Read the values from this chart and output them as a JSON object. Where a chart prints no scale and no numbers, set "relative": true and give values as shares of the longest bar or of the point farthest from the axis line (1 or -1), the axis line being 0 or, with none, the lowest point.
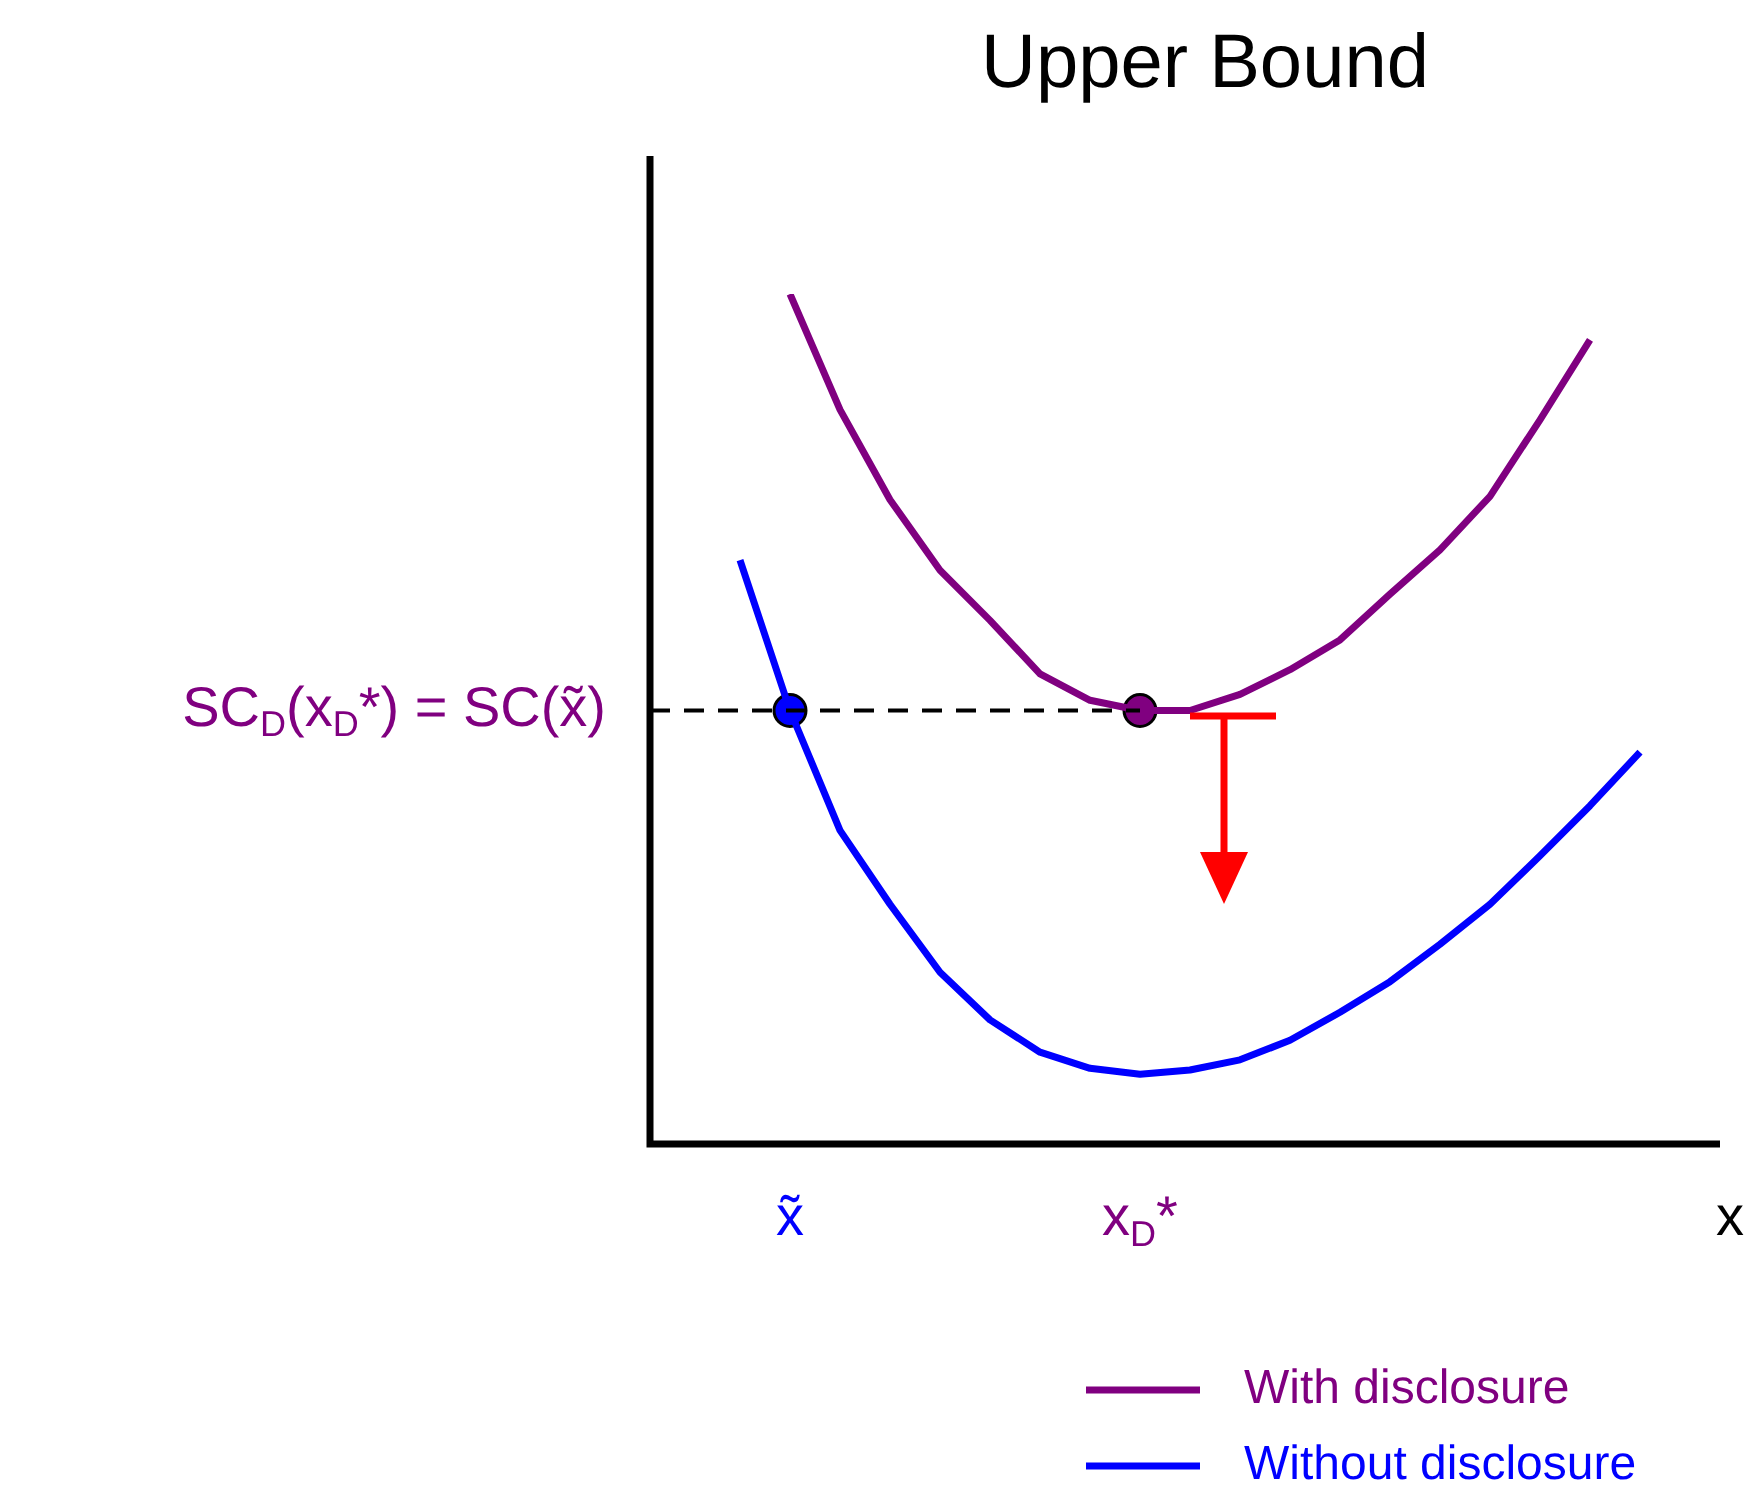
{
  "chart_data": {
    "type": "line",
    "title": "Upper Bound",
    "xlabel": "x",
    "relative": true,
    "tick_labels": "x",
    "legend": "bottom right",
    "categories": [
      null,
      null,
      null,
      "x̃",
      null,
      null,
      null,
      null,
      null,
      null,
      "x$_{D}$*",
      null,
      null,
      null,
      null,
      null,
      null,
      null,
      null,
      null,
      null,
      null
    ],
    "series": [
      {
        "name": "With disclosure",
        "color": "#800080",
        "values": [
          null,
          null,
          null,
          1.0,
          0.864,
          0.758,
          0.675,
          0.616,
          0.553,
          0.522,
          0.51,
          0.51,
          0.529,
          0.558,
          0.593,
          0.647,
          0.699,
          0.762,
          0.852,
          0.946,
          null,
          null
        ]
      },
      {
        "name": "Without disclosure",
        "color": "#0000ff",
        "values": [
          null,
          null,
          0.687,
          0.51,
          0.369,
          0.282,
          0.202,
          0.146,
          0.108,
          0.089,
          0.082,
          0.087,
          0.099,
          0.122,
          0.155,
          0.191,
          0.235,
          0.282,
          0.339,
          0.398,
          0.461,
          null
        ]
      },
      {
        "type": "scatter",
        "color": "#0000ff",
        "marker": "circle",
        "x": [
          "x̃"
        ],
        "values": [
          0.51
        ]
      },
      {
        "type": "scatter",
        "color": "#800080",
        "marker": "circle",
        "x": [
          "x$_{D}$*"
        ],
        "values": [
          0.51
        ]
      }
    ],
    "ref_lines": [
      {
        "axis": "y",
        "value": 0.51,
        "label": "SC$_{D}$(x$_{D}$*) = SC(x̃)",
        "line_style": "dashed"
      }
    ]
  }
}
